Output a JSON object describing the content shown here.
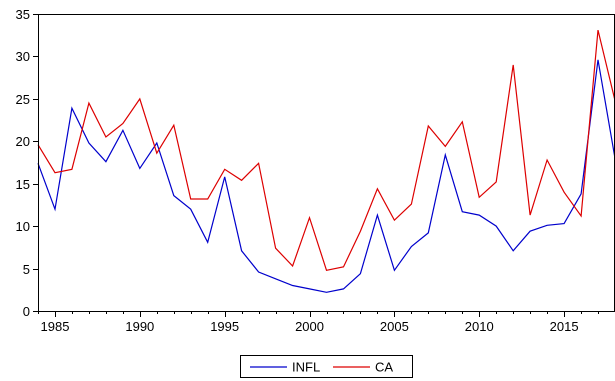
{
  "chart_data": {
    "type": "line",
    "title": "",
    "xlabel": "",
    "ylabel": "",
    "x": [
      1984,
      1985,
      1986,
      1987,
      1988,
      1989,
      1990,
      1991,
      1992,
      1993,
      1994,
      1995,
      1996,
      1997,
      1998,
      1999,
      2000,
      2001,
      2002,
      2003,
      2004,
      2005,
      2006,
      2007,
      2008,
      2009,
      2010,
      2011,
      2012,
      2013,
      2014,
      2015,
      2016,
      2017,
      2018
    ],
    "xlim": [
      1984,
      2018
    ],
    "ylim": [
      0,
      35
    ],
    "xticks": [
      1985,
      1990,
      1995,
      2000,
      2005,
      2010,
      2015
    ],
    "xtick_labels": [
      "1985",
      "1990",
      "1995",
      "2000",
      "2005",
      "2010",
      "2015"
    ],
    "yticks": [
      0,
      5,
      10,
      15,
      20,
      25,
      30,
      35
    ],
    "ytick_labels": [
      "0",
      "5",
      "10",
      "15",
      "20",
      "25",
      "30",
      "35"
    ],
    "legend_position": "bottom-center",
    "grid": false,
    "series": [
      {
        "name": "INFL",
        "color": "#0000cc",
        "values": [
          17.4,
          12.0,
          23.9,
          19.8,
          17.6,
          21.3,
          16.8,
          19.8,
          13.6,
          12.0,
          8.1,
          15.8,
          7.1,
          4.6,
          3.8,
          3.0,
          2.6,
          2.2,
          2.6,
          4.4,
          11.3,
          4.8,
          7.6,
          9.2,
          18.4,
          11.7,
          11.3,
          10.0,
          7.1,
          9.4,
          10.1,
          10.3,
          13.8,
          29.6,
          18.0
        ]
      },
      {
        "name": "CA",
        "color": "#dd0000",
        "values": [
          19.6,
          16.3,
          16.7,
          24.5,
          20.5,
          22.1,
          25.0,
          18.6,
          21.9,
          13.2,
          13.2,
          16.7,
          15.4,
          17.4,
          7.4,
          5.3,
          11.0,
          4.8,
          5.2,
          9.4,
          14.4,
          10.7,
          12.6,
          21.8,
          19.4,
          22.3,
          13.4,
          15.2,
          29.0,
          11.3,
          17.8,
          14.0,
          11.2,
          33.1,
          24.8
        ]
      }
    ]
  }
}
